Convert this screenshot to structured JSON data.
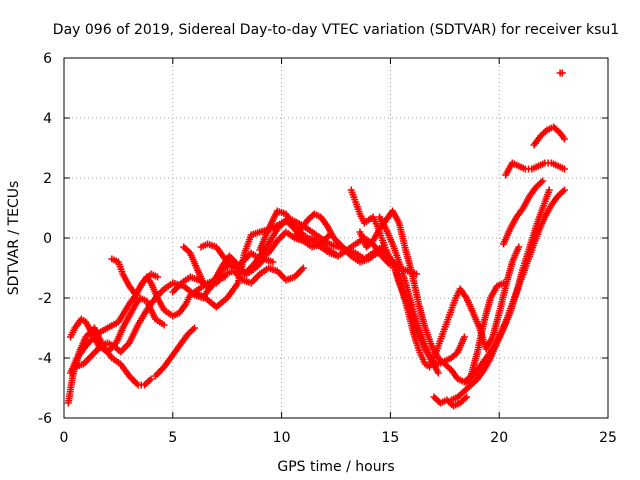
{
  "chart_data": {
    "type": "scatter",
    "title": "Day 096 of 2019, Sidereal Day-to-day VTEC variation (SDTVAR) for receiver ksu1",
    "xlabel": "GPS time / hours",
    "ylabel": "SDTVAR / TECUs",
    "xlim": [
      0,
      25
    ],
    "ylim": [
      -6,
      6
    ],
    "xticks": [
      0,
      5,
      10,
      15,
      20,
      25
    ],
    "xtick_labels": [
      "0",
      "5",
      "10",
      "15",
      "20",
      "25"
    ],
    "yticks": [
      -6,
      -4,
      -2,
      0,
      2,
      4,
      6
    ],
    "ytick_labels": [
      "-6",
      "-4",
      "-2",
      "0",
      "2",
      "4",
      "6"
    ],
    "grid": true,
    "marker": "plus",
    "color": "#ff0000",
    "series": [
      {
        "x": [
          0.2,
          0.4,
          0.7,
          1.0,
          1.4,
          1.8,
          2.2,
          2.6,
          3.0,
          3.4,
          3.7,
          4.0
        ],
        "y": [
          -5.5,
          -4.6,
          -3.8,
          -3.3,
          -3.0,
          -3.6,
          -4.0,
          -4.2,
          -4.6,
          -4.9,
          -4.9,
          -4.7
        ]
      },
      {
        "x": [
          0.3,
          0.6,
          1.0,
          1.5,
          2.0,
          2.5,
          3.0,
          3.3,
          3.6,
          3.8,
          4.0,
          4.3,
          4.6,
          5.0,
          5.3,
          5.6,
          5.8,
          6.2,
          6.6,
          7.0,
          7.4
        ],
        "y": [
          -4.5,
          -4.0,
          -3.6,
          -3.2,
          -3.0,
          -2.8,
          -2.2,
          -1.9,
          -1.5,
          -1.3,
          -1.5,
          -2.0,
          -2.4,
          -2.6,
          -2.5,
          -2.2,
          -1.9,
          -1.7,
          -1.5,
          -1.4,
          -1.3
        ]
      },
      {
        "x": [
          0.3,
          0.5,
          0.8,
          1.0,
          1.3,
          1.6,
          2.0,
          2.4,
          2.7,
          3.0,
          3.3,
          3.5,
          3.8,
          4.2,
          4.6
        ],
        "y": [
          -3.3,
          -3.0,
          -2.7,
          -2.8,
          -3.2,
          -3.6,
          -3.8,
          -3.5,
          -3.0,
          -2.6,
          -2.2,
          -2.0,
          -2.1,
          -2.7,
          -2.9
        ]
      },
      {
        "x": [
          0.5,
          0.9,
          1.3,
          1.7,
          2.0,
          2.3,
          2.6,
          3.0,
          3.4,
          3.8,
          4.2,
          4.6,
          5.0,
          5.5,
          6.0,
          6.4,
          6.8,
          7.2,
          7.6,
          8.0,
          8.4,
          8.8,
          9.2,
          9.6
        ],
        "y": [
          -4.3,
          -4.2,
          -3.9,
          -3.6,
          -3.5,
          -3.6,
          -3.8,
          -3.5,
          -2.9,
          -2.4,
          -2.0,
          -1.7,
          -1.5,
          -1.6,
          -1.9,
          -2.0,
          -1.5,
          -1.1,
          -0.9,
          -1.0,
          -1.2,
          -1.0,
          -0.7,
          -0.8
        ]
      },
      {
        "x": [
          2.2,
          2.5,
          2.7,
          3.0,
          3.3,
          3.6,
          4.0,
          4.3
        ],
        "y": [
          -0.7,
          -0.8,
          -1.2,
          -1.6,
          -1.9,
          -1.5,
          -1.2,
          -1.3
        ]
      },
      {
        "x": [
          4.2,
          4.6,
          5.0,
          5.4,
          5.7,
          6.0
        ],
        "y": [
          -4.6,
          -4.3,
          -3.9,
          -3.5,
          -3.2,
          -3.0
        ]
      },
      {
        "x": [
          5.0,
          5.4,
          5.8,
          6.2,
          6.6,
          7.0,
          7.4,
          7.8,
          8.2,
          8.6,
          9.0,
          9.4,
          9.8,
          10.2,
          10.6,
          11.0
        ],
        "y": [
          -1.8,
          -1.5,
          -1.3,
          -1.4,
          -1.6,
          -1.5,
          -1.2,
          -1.1,
          -1.4,
          -1.5,
          -1.2,
          -1.0,
          -1.1,
          -1.4,
          -1.3,
          -1.0
        ]
      },
      {
        "x": [
          5.5,
          5.8,
          6.1,
          6.4,
          6.7,
          7.0,
          7.3,
          7.6,
          8.0,
          8.3,
          8.7,
          9.0,
          9.4,
          9.8,
          10.2,
          10.6,
          11.0,
          11.4,
          11.8,
          12.2
        ],
        "y": [
          -0.3,
          -0.5,
          -1.0,
          -1.5,
          -1.7,
          -1.3,
          -0.9,
          -0.6,
          -0.9,
          -1.2,
          -0.9,
          -0.6,
          -0.2,
          0.3,
          0.6,
          0.3,
          -0.1,
          -0.3,
          -0.2,
          0.1
        ]
      },
      {
        "x": [
          6.0,
          6.5,
          7.0,
          7.5,
          8.0,
          8.3,
          8.6,
          9.0,
          9.5,
          10.0,
          10.5,
          11.0,
          11.4,
          11.8,
          12.2,
          12.6,
          13.0,
          13.4,
          13.8,
          14.2,
          14.6,
          15.0
        ],
        "y": [
          -1.8,
          -2.0,
          -2.3,
          -2.0,
          -1.5,
          -0.5,
          0.1,
          0.2,
          0.3,
          0.5,
          0.6,
          0.4,
          0.2,
          0.0,
          -0.2,
          -0.3,
          -0.4,
          -0.2,
          0.0,
          -0.2,
          -0.6,
          -0.9
        ]
      },
      {
        "x": [
          6.3,
          6.6,
          7.0,
          7.4,
          7.8,
          8.2,
          8.6,
          9.0,
          9.4,
          9.8,
          10.2,
          10.6,
          11.0,
          11.4,
          11.8,
          12.2,
          12.6
        ],
        "y": [
          -0.3,
          -0.2,
          -0.3,
          -0.7,
          -1.0,
          -0.8,
          -0.5,
          -0.7,
          -0.5,
          -0.1,
          0.2,
          0.0,
          -0.1,
          0.0,
          -0.2,
          -0.4,
          -0.6
        ]
      },
      {
        "x": [
          9.0,
          9.4,
          9.8,
          10.2,
          10.6,
          11.0,
          11.4,
          11.8,
          12.2,
          12.6,
          13.0,
          13.4,
          13.8,
          14.2,
          14.6,
          15.0,
          15.4,
          15.8,
          16.2
        ],
        "y": [
          -0.4,
          0.3,
          0.9,
          0.8,
          0.4,
          0.1,
          -0.1,
          -0.3,
          -0.5,
          -0.6,
          -0.4,
          -0.5,
          -0.7,
          -0.5,
          -0.3,
          -0.7,
          -1.0,
          -1.1,
          -1.2
        ]
      },
      {
        "x": [
          10.6,
          10.9,
          11.2,
          11.5,
          11.8,
          12.1,
          12.4,
          12.8,
          13.2,
          13.6,
          14.0,
          14.4,
          14.8
        ],
        "y": [
          0.0,
          0.3,
          0.6,
          0.8,
          0.7,
          0.4,
          0.0,
          -0.3,
          -0.6,
          -0.8,
          -0.7,
          -0.5,
          -0.4
        ]
      },
      {
        "x": [
          13.2,
          13.4,
          13.6,
          13.8,
          14.0,
          14.2,
          14.4,
          14.6,
          14.8,
          15.0,
          15.2,
          15.4,
          15.7,
          16.0,
          16.3,
          16.6,
          16.9,
          17.2,
          17.5,
          17.8,
          18.1,
          18.4
        ],
        "y": [
          1.6,
          1.2,
          0.8,
          0.5,
          0.6,
          0.7,
          0.4,
          0.0,
          -0.4,
          -0.7,
          -1.0,
          -1.5,
          -2.0,
          -2.6,
          -3.2,
          -3.7,
          -4.1,
          -4.2,
          -4.1,
          -4.0,
          -3.8,
          -3.3
        ]
      },
      {
        "x": [
          13.6,
          13.9,
          14.2,
          14.5,
          14.8,
          15.1,
          15.4,
          15.7,
          16.0,
          16.3,
          16.6,
          16.9,
          17.2,
          17.5,
          17.8,
          18.1,
          18.4,
          18.7,
          19.0,
          19.3,
          19.6,
          19.9,
          20.2
        ],
        "y": [
          0.2,
          -0.3,
          -0.1,
          0.3,
          0.6,
          0.9,
          0.5,
          -0.4,
          -1.2,
          -2.2,
          -3.0,
          -3.6,
          -4.0,
          -4.2,
          -4.4,
          -4.7,
          -4.8,
          -4.6,
          -3.8,
          -2.8,
          -2.0,
          -1.6,
          -1.5
        ]
      },
      {
        "x": [
          14.5,
          14.8,
          15.1,
          15.4,
          15.7,
          16.0,
          16.3,
          16.6,
          16.9,
          17.2
        ],
        "y": [
          0.7,
          0.3,
          -0.2,
          -0.8,
          -1.5,
          -2.3,
          -3.0,
          -3.6,
          -4.1,
          -4.5
        ]
      },
      {
        "x": [
          14.8,
          15.0,
          15.2,
          15.4,
          15.6,
          15.8,
          16.0,
          16.2,
          16.4,
          16.6,
          16.8,
          17.0,
          17.2,
          17.4,
          17.6,
          17.8,
          18.0,
          18.2,
          18.5,
          18.8,
          19.1,
          19.4,
          19.7,
          20.0,
          20.3,
          20.6,
          20.9
        ],
        "y": [
          -0.5,
          -0.7,
          -1.0,
          -1.4,
          -1.9,
          -2.4,
          -3.0,
          -3.5,
          -3.9,
          -4.2,
          -4.3,
          -4.0,
          -3.6,
          -3.2,
          -2.8,
          -2.4,
          -2.0,
          -1.7,
          -2.0,
          -2.5,
          -3.0,
          -3.7,
          -3.3,
          -2.5,
          -1.6,
          -0.8,
          -0.3
        ]
      },
      {
        "x": [
          17.0,
          17.3,
          17.6,
          17.9,
          18.2,
          18.5
        ],
        "y": [
          -5.3,
          -5.5,
          -5.4,
          -5.6,
          -5.5,
          -5.3
        ]
      },
      {
        "x": [
          17.8,
          18.1,
          18.4,
          18.7,
          19.0,
          19.3,
          19.6,
          19.9,
          20.2,
          20.5,
          20.8,
          21.1,
          21.4,
          21.7,
          22.0,
          22.3
        ],
        "y": [
          -5.4,
          -5.3,
          -5.1,
          -4.9,
          -4.7,
          -4.4,
          -4.0,
          -3.5,
          -3.0,
          -2.5,
          -1.8,
          -1.0,
          -0.3,
          0.4,
          1.0,
          1.6
        ]
      },
      {
        "x": [
          18.5,
          18.8,
          19.1,
          19.4,
          19.7,
          20.0,
          20.3,
          20.6,
          20.9,
          21.2,
          21.5,
          21.8,
          22.1,
          22.4,
          22.7,
          23.0
        ],
        "y": [
          -4.8,
          -4.6,
          -4.3,
          -4.0,
          -3.7,
          -3.3,
          -2.8,
          -2.2,
          -1.6,
          -1.0,
          -0.4,
          0.2,
          0.7,
          1.1,
          1.4,
          1.6
        ]
      },
      {
        "x": [
          20.2,
          20.5,
          20.8,
          21.1,
          21.4,
          21.7,
          22.0
        ],
        "y": [
          -0.2,
          0.3,
          0.7,
          1.0,
          1.4,
          1.7,
          1.9
        ]
      },
      {
        "x": [
          20.3,
          20.6,
          20.9,
          21.2,
          21.5,
          21.8,
          22.1,
          22.4,
          22.7,
          23.0
        ],
        "y": [
          2.1,
          2.5,
          2.4,
          2.3,
          2.3,
          2.4,
          2.5,
          2.5,
          2.4,
          2.3
        ]
      },
      {
        "x": [
          21.6,
          21.9,
          22.2,
          22.5,
          22.8,
          23.0
        ],
        "y": [
          3.1,
          3.4,
          3.6,
          3.7,
          3.5,
          3.3
        ]
      },
      {
        "x": [
          22.8,
          22.9
        ],
        "y": [
          5.5,
          5.5
        ]
      }
    ]
  }
}
